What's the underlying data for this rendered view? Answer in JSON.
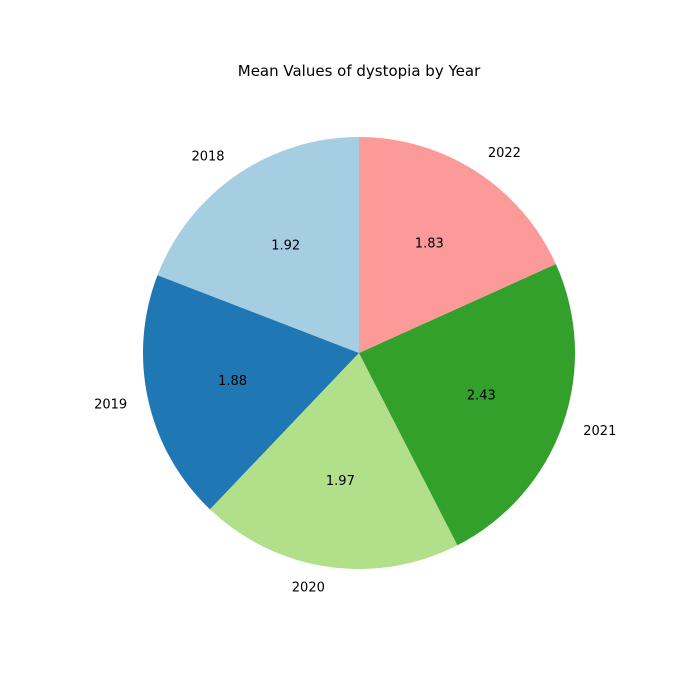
{
  "chart_data": {
    "type": "pie",
    "title": "Mean Values of dystopia by Year",
    "categories": [
      "2018",
      "2019",
      "2020",
      "2021",
      "2022"
    ],
    "values": [
      1.92,
      1.88,
      1.97,
      2.43,
      1.83
    ],
    "value_labels": [
      "1.92",
      "1.88",
      "1.97",
      "2.43",
      "1.83"
    ],
    "colors": [
      "#a6cee3",
      "#1f78b4",
      "#b2df8a",
      "#33a02c",
      "#fb9a99"
    ],
    "start_angle_deg": 90,
    "direction": "counterclockwise",
    "legend": "none"
  }
}
